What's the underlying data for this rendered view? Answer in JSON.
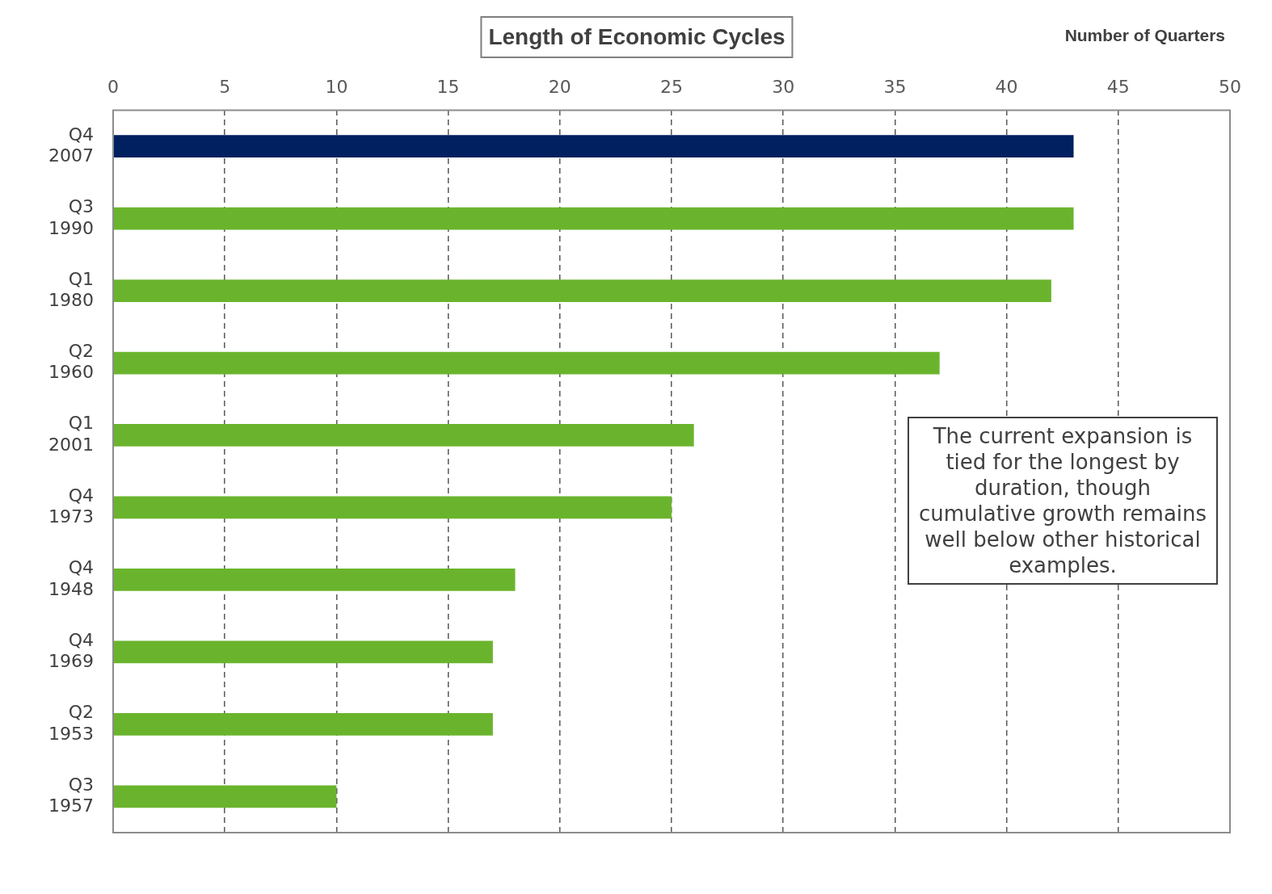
{
  "chart_data": {
    "type": "bar",
    "orientation": "horizontal",
    "title": "Length of Economic Cycles",
    "xlabel": "Number of Quarters",
    "categories": [
      "Q4 2007",
      "Q3 1990",
      "Q1 1980",
      "Q2 1960",
      "Q1 2001",
      "Q4 1973",
      "Q4 1948",
      "Q4 1969",
      "Q2 1953",
      "Q3 1957"
    ],
    "values": [
      43,
      43,
      42,
      37,
      26,
      25,
      18,
      17,
      17,
      10
    ],
    "colors": [
      "#002060",
      "#6ab42d",
      "#6ab42d",
      "#6ab42d",
      "#6ab42d",
      "#6ab42d",
      "#6ab42d",
      "#6ab42d",
      "#6ab42d",
      "#6ab42d"
    ],
    "xlim": [
      0,
      50
    ],
    "xticks": [
      0,
      5,
      10,
      15,
      20,
      25,
      30,
      35,
      40,
      45,
      50
    ],
    "grid": "x",
    "legend": false,
    "annotations": [
      "The current expansion is tied for the longest by duration, though cumulative growth remains well below other historical examples."
    ]
  }
}
